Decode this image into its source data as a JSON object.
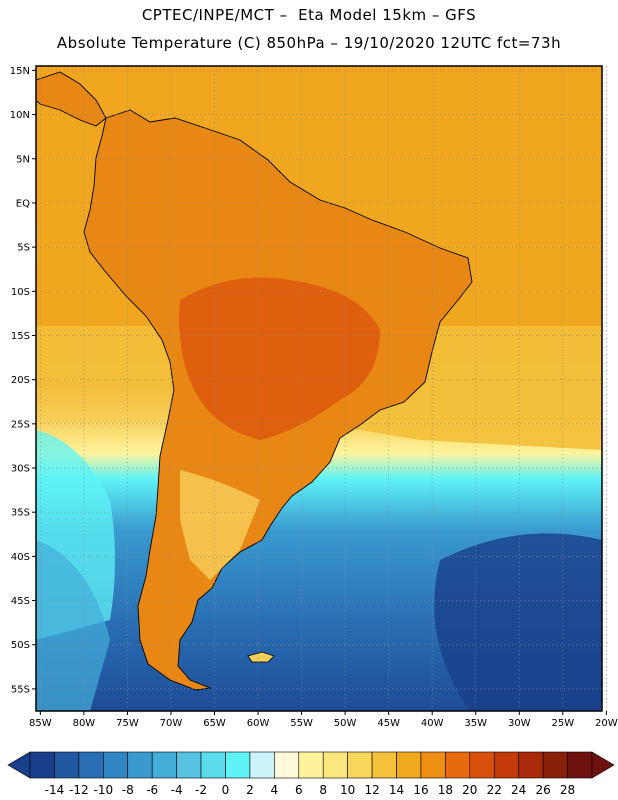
{
  "header": {
    "line1": "CPTEC/INPE/MCT –  Eta Model 15km – GFS",
    "line2": "Absolute Temperature (C) 850hPa – 19/10/2020 12UTC fct=73h"
  },
  "map": {
    "lat_labels": [
      "15N",
      "10N",
      "5N",
      "EQ",
      "5S",
      "10S",
      "15S",
      "20S",
      "25S",
      "30S",
      "35S",
      "40S",
      "45S",
      "50S",
      "55S"
    ],
    "lat_values": [
      15,
      10,
      5,
      0,
      -5,
      -10,
      -15,
      -20,
      -25,
      -30,
      -35,
      -40,
      -45,
      -50,
      -55
    ],
    "lon_labels": [
      "85W",
      "80W",
      "75W",
      "70W",
      "65W",
      "60W",
      "55W",
      "50W",
      "45W",
      "40W",
      "35W",
      "30W",
      "25W",
      "20W"
    ],
    "lon_values": [
      -85,
      -80,
      -75,
      -70,
      -65,
      -60,
      -55,
      -50,
      -45,
      -40,
      -35,
      -30,
      -25,
      -20
    ],
    "extent": {
      "lon_min": -85.5,
      "lon_max": -20.5,
      "lat_min": -57.5,
      "lat_max": 15.5
    },
    "grid": "dotted",
    "ocean_color": "#F2A61A",
    "land_color": "#E98715"
  },
  "colorbar": {
    "labels": [
      "-14",
      "-12",
      "-10",
      "-8",
      "-6",
      "-4",
      "-2",
      "0",
      "2",
      "4",
      "6",
      "8",
      "10",
      "12",
      "14",
      "16",
      "18",
      "20",
      "22",
      "24",
      "26",
      "28"
    ],
    "colors": [
      "#1A3F8A",
      "#2258A2",
      "#2A6FB5",
      "#3186C4",
      "#3A9ACF",
      "#45AED8",
      "#56C3E2",
      "#5ADCEA",
      "#5FF3F6",
      "#CBF3F9",
      "#FFF9DC",
      "#FFF49C",
      "#FBE77E",
      "#F7D65B",
      "#F3C13C",
      "#F0A81E",
      "#EE8E13",
      "#E86A0F",
      "#D9500B",
      "#C43A08",
      "#A82A08",
      "#8A1F0A",
      "#6E1210"
    ],
    "unit": "C"
  }
}
